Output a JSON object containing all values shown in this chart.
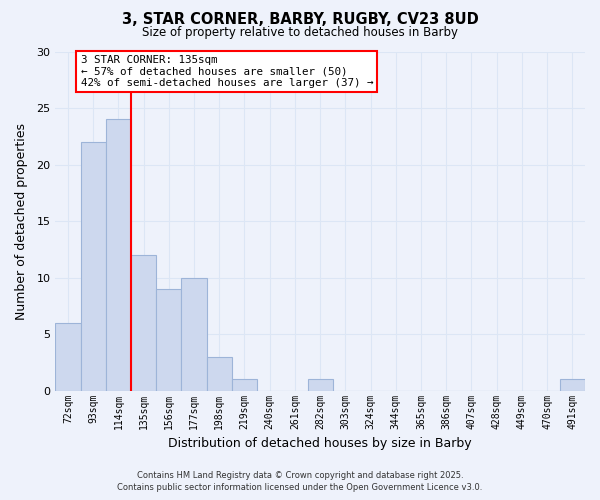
{
  "title": "3, STAR CORNER, BARBY, RUGBY, CV23 8UD",
  "subtitle": "Size of property relative to detached houses in Barby",
  "xlabel": "Distribution of detached houses by size in Barby",
  "ylabel": "Number of detached properties",
  "bins": [
    "72sqm",
    "93sqm",
    "114sqm",
    "135sqm",
    "156sqm",
    "177sqm",
    "198sqm",
    "219sqm",
    "240sqm",
    "261sqm",
    "282sqm",
    "303sqm",
    "324sqm",
    "344sqm",
    "365sqm",
    "386sqm",
    "407sqm",
    "428sqm",
    "449sqm",
    "470sqm",
    "491sqm"
  ],
  "values": [
    6,
    22,
    24,
    12,
    9,
    10,
    3,
    1,
    0,
    0,
    1,
    0,
    0,
    0,
    0,
    0,
    0,
    0,
    0,
    0,
    1
  ],
  "bar_color": "#cdd8ee",
  "bar_edge_color": "#9db4d8",
  "red_line_bin_index": 3,
  "annotation_title": "3 STAR CORNER: 135sqm",
  "annotation_line2": "← 57% of detached houses are smaller (50)",
  "annotation_line3": "42% of semi-detached houses are larger (37) →",
  "ylim": [
    0,
    30
  ],
  "yticks": [
    0,
    5,
    10,
    15,
    20,
    25,
    30
  ],
  "footer1": "Contains HM Land Registry data © Crown copyright and database right 2025.",
  "footer2": "Contains public sector information licensed under the Open Government Licence v3.0.",
  "background_color": "#eef2fb",
  "grid_color": "#dce6f5"
}
